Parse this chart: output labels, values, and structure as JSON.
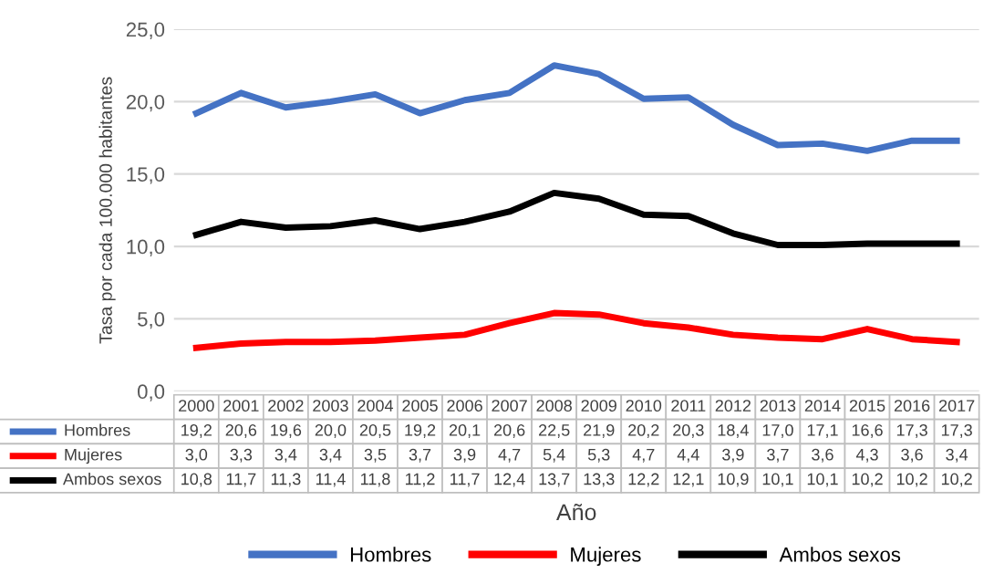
{
  "chart_data": {
    "type": "line",
    "xlabel": "Año",
    "ylabel": "Tasa por cada 100.000 habitantes",
    "categories": [
      "2000",
      "2001",
      "2002",
      "2003",
      "2004",
      "2005",
      "2006",
      "2007",
      "2008",
      "2009",
      "2010",
      "2011",
      "2012",
      "2013",
      "2014",
      "2015",
      "2016",
      "2017"
    ],
    "series": [
      {
        "name": "Hombres",
        "color": "#4472c4",
        "values": [
          19.2,
          20.6,
          19.6,
          20.0,
          20.5,
          19.2,
          20.1,
          20.6,
          22.5,
          21.9,
          20.2,
          20.3,
          18.4,
          17.0,
          17.1,
          16.6,
          17.3,
          17.3
        ],
        "value_labels": [
          "19,2",
          "20,6",
          "19,6",
          "20,0",
          "20,5",
          "19,2",
          "20,1",
          "20,6",
          "22,5",
          "21,9",
          "20,2",
          "20,3",
          "18,4",
          "17,0",
          "17,1",
          "16,6",
          "17,3",
          "17,3"
        ]
      },
      {
        "name": "Mujeres",
        "color": "#ff0000",
        "values": [
          3.0,
          3.3,
          3.4,
          3.4,
          3.5,
          3.7,
          3.9,
          4.7,
          5.4,
          5.3,
          4.7,
          4.4,
          3.9,
          3.7,
          3.6,
          4.3,
          3.6,
          3.4
        ],
        "value_labels": [
          "3,0",
          "3,3",
          "3,4",
          "3,4",
          "3,5",
          "3,7",
          "3,9",
          "4,7",
          "5,4",
          "5,3",
          "4,7",
          "4,4",
          "3,9",
          "3,7",
          "3,6",
          "4,3",
          "3,6",
          "3,4"
        ]
      },
      {
        "name": "Ambos sexos",
        "color": "#000000",
        "values": [
          10.8,
          11.7,
          11.3,
          11.4,
          11.8,
          11.2,
          11.7,
          12.4,
          13.7,
          13.3,
          12.2,
          12.1,
          10.9,
          10.1,
          10.1,
          10.2,
          10.2,
          10.2
        ],
        "value_labels": [
          "10,8",
          "11,7",
          "11,3",
          "11,4",
          "11,8",
          "11,2",
          "11,7",
          "12,4",
          "13,7",
          "13,3",
          "12,2",
          "12,1",
          "10,9",
          "10,1",
          "10,1",
          "10,2",
          "10,2",
          "10,2"
        ]
      }
    ],
    "ylim": [
      0,
      25
    ],
    "yticks": [
      {
        "value": 0,
        "label": "0,0"
      },
      {
        "value": 5,
        "label": "5,0"
      },
      {
        "value": 10,
        "label": "10,0"
      },
      {
        "value": 15,
        "label": "15,0"
      },
      {
        "value": 20,
        "label": "20,0"
      },
      {
        "value": 25,
        "label": "25,0"
      }
    ],
    "grid": "y",
    "legend": "bottom",
    "marker": "none",
    "line_style": "solid"
  }
}
